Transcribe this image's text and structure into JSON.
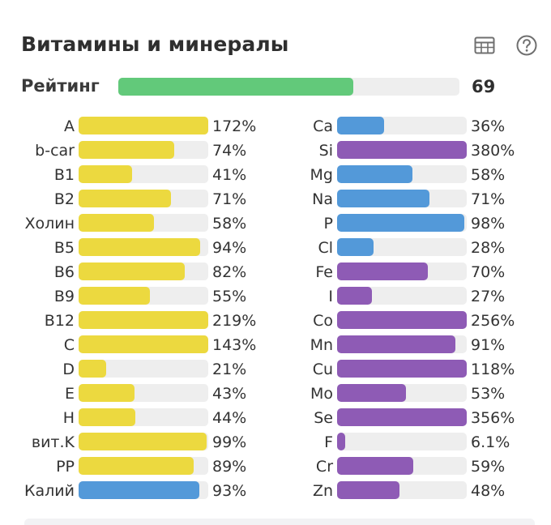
{
  "header": {
    "title": "Витамины и минералы",
    "table_icon": "table-icon",
    "help_icon": "help-icon"
  },
  "rating": {
    "label": "Рейтинг",
    "value": "69",
    "fraction": 0.69,
    "color": "#62c97a"
  },
  "colors": {
    "vitamin": "#ecd93f",
    "mineral": "#5399d9",
    "trace": "#8e5bb5",
    "track": "#eeeeee"
  },
  "chart_data": {
    "type": "bar",
    "orientation": "horizontal",
    "title": "Витамины и минералы",
    "bar_max_percent": 100,
    "series": [
      {
        "name": "left-column",
        "rows": [
          {
            "name": "A",
            "percent": 172,
            "label": "172%",
            "group": "vitamin"
          },
          {
            "name": "b-car",
            "percent": 74,
            "label": "74%",
            "group": "vitamin"
          },
          {
            "name": "B1",
            "percent": 41,
            "label": "41%",
            "group": "vitamin"
          },
          {
            "name": "B2",
            "percent": 71,
            "label": "71%",
            "group": "vitamin"
          },
          {
            "name": "Холин",
            "percent": 58,
            "label": "58%",
            "group": "vitamin"
          },
          {
            "name": "B5",
            "percent": 94,
            "label": "94%",
            "group": "vitamin"
          },
          {
            "name": "B6",
            "percent": 82,
            "label": "82%",
            "group": "vitamin"
          },
          {
            "name": "B9",
            "percent": 55,
            "label": "55%",
            "group": "vitamin"
          },
          {
            "name": "B12",
            "percent": 219,
            "label": "219%",
            "group": "vitamin"
          },
          {
            "name": "C",
            "percent": 143,
            "label": "143%",
            "group": "vitamin"
          },
          {
            "name": "D",
            "percent": 21,
            "label": "21%",
            "group": "vitamin"
          },
          {
            "name": "E",
            "percent": 43,
            "label": "43%",
            "group": "vitamin"
          },
          {
            "name": "H",
            "percent": 44,
            "label": "44%",
            "group": "vitamin"
          },
          {
            "name": "вит.K",
            "percent": 99,
            "label": "99%",
            "group": "vitamin"
          },
          {
            "name": "PP",
            "percent": 89,
            "label": "89%",
            "group": "vitamin"
          },
          {
            "name": "Калий",
            "percent": 93,
            "label": "93%",
            "group": "mineral"
          }
        ]
      },
      {
        "name": "right-column",
        "rows": [
          {
            "name": "Ca",
            "percent": 36,
            "label": "36%",
            "group": "mineral"
          },
          {
            "name": "Si",
            "percent": 380,
            "label": "380%",
            "group": "trace"
          },
          {
            "name": "Mg",
            "percent": 58,
            "label": "58%",
            "group": "mineral"
          },
          {
            "name": "Na",
            "percent": 71,
            "label": "71%",
            "group": "mineral"
          },
          {
            "name": "P",
            "percent": 98,
            "label": "98%",
            "group": "mineral"
          },
          {
            "name": "Cl",
            "percent": 28,
            "label": "28%",
            "group": "mineral"
          },
          {
            "name": "Fe",
            "percent": 70,
            "label": "70%",
            "group": "trace"
          },
          {
            "name": "I",
            "percent": 27,
            "label": "27%",
            "group": "trace"
          },
          {
            "name": "Co",
            "percent": 256,
            "label": "256%",
            "group": "trace"
          },
          {
            "name": "Mn",
            "percent": 91,
            "label": "91%",
            "group": "trace"
          },
          {
            "name": "Cu",
            "percent": 118,
            "label": "118%",
            "group": "trace"
          },
          {
            "name": "Mo",
            "percent": 53,
            "label": "53%",
            "group": "trace"
          },
          {
            "name": "Se",
            "percent": 356,
            "label": "356%",
            "group": "trace"
          },
          {
            "name": "F",
            "percent": 6.1,
            "label": "6.1%",
            "group": "trace"
          },
          {
            "name": "Cr",
            "percent": 59,
            "label": "59%",
            "group": "trace"
          },
          {
            "name": "Zn",
            "percent": 48,
            "label": "48%",
            "group": "trace"
          }
        ]
      }
    ]
  }
}
